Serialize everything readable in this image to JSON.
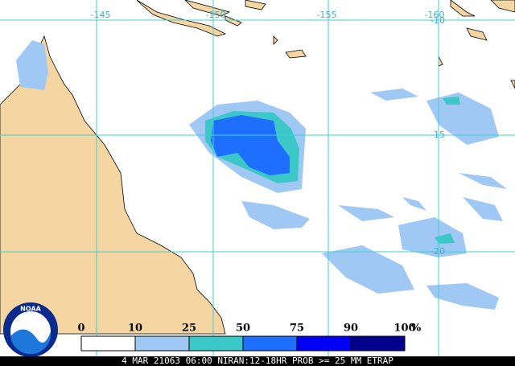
{
  "map": {
    "lon_labels": [
      "-145",
      "-150",
      "-155",
      "-160"
    ],
    "lat_labels": [
      "-10",
      "-15",
      "-20"
    ],
    "legend": {
      "labels": [
        "0",
        "10",
        "25",
        "50",
        "75",
        "90",
        "100"
      ],
      "unit": "%",
      "colors": [
        "#ffffff",
        "#a0c8f5",
        "#3cc8c8",
        "#1e6eff",
        "#0000f5",
        "#00008c"
      ]
    },
    "logo": "NOAA",
    "footer": "4 MAR 21063 06:00 NIRAN:12-18HR PROB >= 25 MM ETRAP"
  }
}
